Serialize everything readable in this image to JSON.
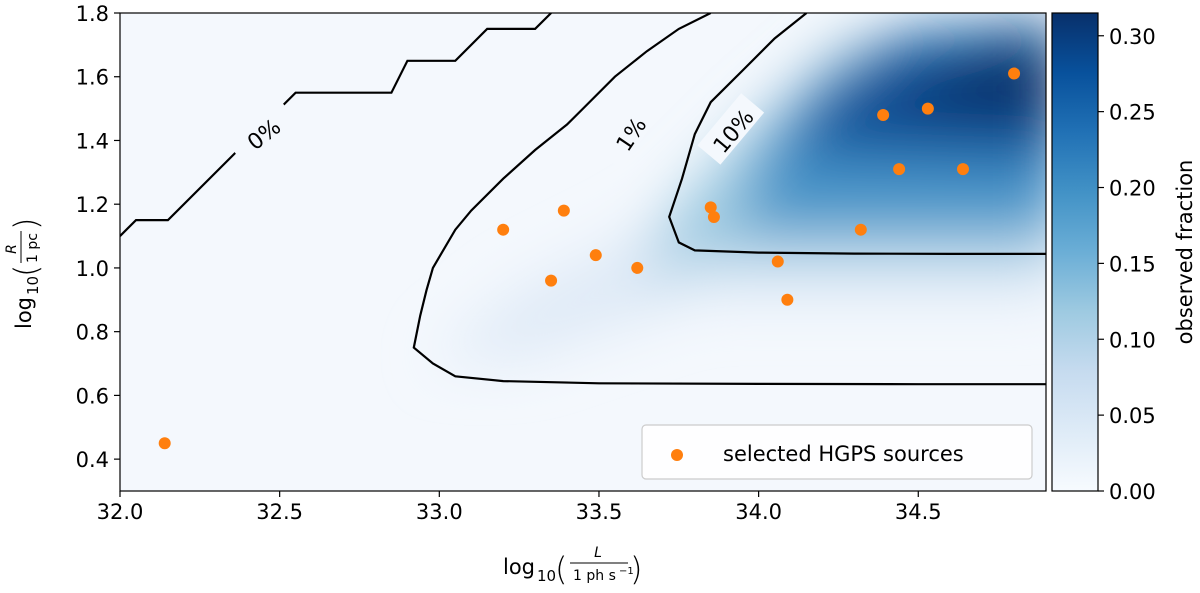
{
  "chart_data": {
    "type": "heatmap",
    "title": "",
    "xlabel_parts": {
      "prefix": "log",
      "sub": "10",
      "num": "L",
      "den": "1 ph s",
      "den_sup": "−1"
    },
    "ylabel_parts": {
      "prefix": "log",
      "sub": "10",
      "num": "R",
      "den": "1 pc"
    },
    "xlim": [
      32.0,
      34.9
    ],
    "ylim": [
      0.3,
      1.8
    ],
    "xticks": [
      32.0,
      32.5,
      33.0,
      33.5,
      34.0,
      34.5
    ],
    "xtick_labels": [
      "32.0",
      "32.5",
      "33.0",
      "33.5",
      "34.0",
      "34.5"
    ],
    "yticks": [
      0.4,
      0.6,
      0.8,
      1.0,
      1.2,
      1.4,
      1.6,
      1.8
    ],
    "ytick_labels": [
      "0.4",
      "0.6",
      "0.8",
      "1.0",
      "1.2",
      "1.4",
      "1.6",
      "1.8"
    ],
    "colorbar": {
      "label": "observed fraction",
      "range": [
        0.0,
        0.315
      ],
      "ticks": [
        0.0,
        0.05,
        0.1,
        0.15,
        0.2,
        0.25,
        0.3
      ],
      "tick_labels": [
        "0.00",
        "0.05",
        "0.10",
        "0.15",
        "0.20",
        "0.25",
        "0.30"
      ],
      "colormap": "Blues"
    },
    "contours": [
      {
        "level_label": "0%",
        "points": [
          [
            32.0,
            1.1
          ],
          [
            32.05,
            1.15
          ],
          [
            32.15,
            1.15
          ],
          [
            32.35,
            1.35
          ],
          [
            32.4,
            1.4
          ],
          [
            32.55,
            1.55
          ],
          [
            32.65,
            1.55
          ],
          [
            32.75,
            1.55
          ],
          [
            32.85,
            1.55
          ],
          [
            32.9,
            1.65
          ],
          [
            33.05,
            1.65
          ],
          [
            33.15,
            1.75
          ],
          [
            33.3,
            1.75
          ],
          [
            33.35,
            1.8
          ]
        ],
        "label_pos": [
          32.45,
          1.42
        ],
        "label_angle": -38
      },
      {
        "level_label": "1%",
        "points": [
          [
            33.85,
            1.8
          ],
          [
            33.75,
            1.75
          ],
          [
            33.65,
            1.68
          ],
          [
            33.55,
            1.6
          ],
          [
            33.45,
            1.5
          ],
          [
            33.4,
            1.45
          ],
          [
            33.3,
            1.37
          ],
          [
            33.2,
            1.28
          ],
          [
            33.1,
            1.18
          ],
          [
            33.05,
            1.12
          ],
          [
            32.98,
            1.0
          ],
          [
            32.96,
            0.93
          ],
          [
            32.94,
            0.85
          ],
          [
            32.92,
            0.75
          ],
          [
            32.98,
            0.7
          ],
          [
            33.05,
            0.66
          ],
          [
            33.2,
            0.645
          ],
          [
            33.5,
            0.638
          ],
          [
            34.0,
            0.636
          ],
          [
            34.5,
            0.635
          ],
          [
            34.9,
            0.635
          ]
        ],
        "label_pos": [
          33.6,
          1.42
        ],
        "label_angle": -56
      },
      {
        "level_label": "10%",
        "points": [
          [
            34.15,
            1.8
          ],
          [
            34.05,
            1.72
          ],
          [
            33.95,
            1.62
          ],
          [
            33.85,
            1.52
          ],
          [
            33.8,
            1.42
          ],
          [
            33.76,
            1.28
          ],
          [
            33.75,
            1.25
          ],
          [
            33.72,
            1.16
          ],
          [
            33.75,
            1.08
          ],
          [
            33.8,
            1.055
          ],
          [
            34.0,
            1.048
          ],
          [
            34.3,
            1.045
          ],
          [
            34.6,
            1.044
          ],
          [
            34.9,
            1.044
          ]
        ],
        "label_pos": [
          33.92,
          1.43
        ],
        "label_angle": -50
      }
    ],
    "series": [
      {
        "name": "selected HGPS sources",
        "color": "#ff7f0e",
        "points": [
          [
            32.14,
            0.45
          ],
          [
            33.2,
            1.12
          ],
          [
            33.35,
            0.96
          ],
          [
            33.39,
            1.18
          ],
          [
            33.49,
            1.04
          ],
          [
            33.62,
            1.0
          ],
          [
            33.85,
            1.19
          ],
          [
            33.86,
            1.16
          ],
          [
            34.06,
            1.02
          ],
          [
            34.09,
            0.9
          ],
          [
            34.32,
            1.12
          ],
          [
            34.39,
            1.48
          ],
          [
            34.44,
            1.31
          ],
          [
            34.53,
            1.5
          ],
          [
            34.64,
            1.31
          ],
          [
            34.8,
            1.61
          ]
        ]
      }
    ],
    "legend": {
      "position": "lower-right",
      "entries": [
        "selected HGPS sources"
      ]
    }
  }
}
